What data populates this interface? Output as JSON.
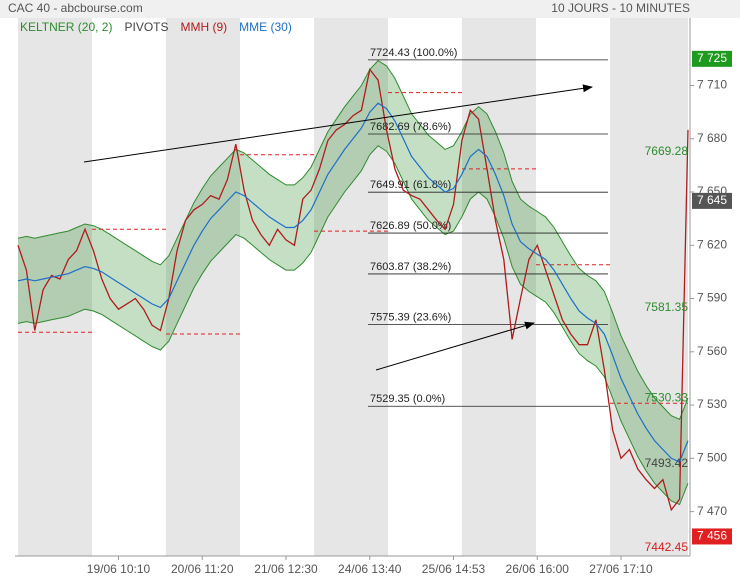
{
  "chart_data": {
    "type": "line",
    "title": "CAC 40 - abcbourse.com",
    "subtitle": "10 JOURS - 10 MINUTES",
    "categories": [
      null,
      null,
      null,
      null,
      null,
      null,
      null,
      null,
      null,
      null,
      null,
      null,
      "19/06 10:10",
      null,
      null,
      null,
      null,
      null,
      null,
      null,
      null,
      null,
      "20/06 11:20",
      null,
      null,
      null,
      null,
      null,
      null,
      null,
      null,
      null,
      "21/06 12:30",
      null,
      null,
      null,
      null,
      null,
      null,
      null,
      null,
      null,
      "24/06 13:40",
      null,
      null,
      null,
      null,
      null,
      null,
      null,
      null,
      null,
      "25/06 14:53",
      null,
      null,
      null,
      null,
      null,
      null,
      null,
      null,
      null,
      "26/06 16:00",
      null,
      null,
      null,
      null,
      null,
      null,
      null,
      null,
      null,
      "27/06 17:10",
      null,
      null,
      null,
      null,
      null,
      null,
      null,
      null
    ],
    "keltner": {
      "name": "KELTNER (20, 2)",
      "color": "#2e8b2e",
      "upper": [
        7624,
        7625,
        7624,
        7625,
        7626,
        7627,
        7628,
        7630,
        7632,
        7631,
        7629,
        7626,
        7623,
        7620,
        7617,
        7614,
        7611,
        7609,
        7614,
        7624,
        7634,
        7644,
        7652,
        7659,
        7664,
        7669,
        7674,
        7672,
        7668,
        7664,
        7660,
        7657,
        7654,
        7654,
        7658,
        7664,
        7674,
        7684,
        7691,
        7698,
        7704,
        7710,
        7719,
        7724,
        7721,
        7714,
        7704,
        7694,
        7688,
        7682,
        7678,
        7674,
        7676,
        7684,
        7694,
        7698,
        7694,
        7684,
        7672,
        7656,
        7646,
        7642,
        7639,
        7636,
        7630,
        7622,
        7614,
        7607,
        7603,
        7600,
        7594,
        7582,
        7569,
        7559,
        7549,
        7541,
        7534,
        7529,
        7524,
        7522,
        7534
      ],
      "lower": [
        7576,
        7577,
        7576,
        7577,
        7578,
        7579,
        7580,
        7582,
        7584,
        7583,
        7581,
        7578,
        7575,
        7572,
        7569,
        7566,
        7563,
        7561,
        7566,
        7576,
        7586,
        7596,
        7604,
        7611,
        7616,
        7621,
        7626,
        7624,
        7620,
        7616,
        7612,
        7609,
        7606,
        7606,
        7610,
        7616,
        7626,
        7636,
        7643,
        7650,
        7656,
        7662,
        7671,
        7676,
        7673,
        7666,
        7656,
        7646,
        7640,
        7634,
        7630,
        7626,
        7628,
        7636,
        7646,
        7650,
        7646,
        7636,
        7624,
        7608,
        7598,
        7594,
        7591,
        7588,
        7582,
        7574,
        7566,
        7559,
        7555,
        7552,
        7546,
        7534,
        7521,
        7511,
        7501,
        7493,
        7486,
        7481,
        7476,
        7474,
        7486
      ]
    },
    "pivots": {
      "name": "PIVOTS",
      "color": "#d22",
      "values": [
        7571,
        7629,
        7570,
        7671,
        7628,
        7706,
        7663,
        7609,
        7531
      ]
    },
    "mmh": {
      "name": "MMH (9)",
      "color": "#b01c1c",
      "values": [
        7620,
        7606,
        7572,
        7595,
        7603,
        7601,
        7612,
        7617,
        7629,
        7617,
        7601,
        7590,
        7584,
        7587,
        7590,
        7584,
        7575,
        7572,
        7590,
        7617,
        7634,
        7640,
        7643,
        7648,
        7646,
        7657,
        7677,
        7651,
        7634,
        7626,
        7620,
        7629,
        7623,
        7620,
        7646,
        7651,
        7663,
        7679,
        7685,
        7688,
        7693,
        7696,
        7719,
        7713,
        7685,
        7663,
        7651,
        7648,
        7646,
        7640,
        7634,
        7629,
        7643,
        7679,
        7696,
        7691,
        7663,
        7634,
        7612,
        7567,
        7590,
        7612,
        7620,
        7606,
        7592,
        7578,
        7570,
        7564,
        7564,
        7578,
        7550,
        7516,
        7500,
        7505,
        7494,
        7488,
        7483,
        7488,
        7471,
        7477,
        7685
      ]
    },
    "mme": {
      "name": "MME (30)",
      "color": "#1f6fc8",
      "values": [
        7600,
        7601,
        7600,
        7601,
        7602,
        7603,
        7604,
        7606,
        7608,
        7607,
        7605,
        7602,
        7599,
        7596,
        7593,
        7590,
        7587,
        7585,
        7590,
        7600,
        7610,
        7620,
        7628,
        7635,
        7640,
        7645,
        7650,
        7648,
        7644,
        7640,
        7636,
        7633,
        7630,
        7630,
        7634,
        7640,
        7650,
        7660,
        7667,
        7674,
        7680,
        7686,
        7695,
        7700,
        7697,
        7690,
        7680,
        7670,
        7664,
        7658,
        7654,
        7650,
        7652,
        7660,
        7670,
        7674,
        7670,
        7660,
        7648,
        7632,
        7622,
        7618,
        7615,
        7612,
        7606,
        7598,
        7590,
        7583,
        7579,
        7576,
        7570,
        7558,
        7545,
        7535,
        7525,
        7517,
        7510,
        7505,
        7500,
        7498,
        7510
      ]
    },
    "fibonacci": [
      {
        "value": 7724.43,
        "label": "7724.43  (100.0%)"
      },
      {
        "value": 7682.69,
        "label": "7682.69  (78.6%)"
      },
      {
        "value": 7649.91,
        "label": "7649.91  (61.8%)"
      },
      {
        "value": 7626.89,
        "label": "7626.89  (50.0%)"
      },
      {
        "value": 7603.87,
        "label": "7603.87  (38.2%)"
      },
      {
        "value": 7575.39,
        "label": "7575.39  (23.6%)"
      },
      {
        "value": 7529.35,
        "label": "7529.35  (0.0%)"
      }
    ],
    "price_labels": [
      {
        "value": 7669.28,
        "color": "#2e8b2e"
      },
      {
        "value": 7581.35,
        "color": "#2e8b2e"
      },
      {
        "value": 7530.33,
        "color": "#2e8b2e"
      },
      {
        "value": 7493.42,
        "color": "#444444"
      },
      {
        "value": 7442.45,
        "color": "#d22222"
      }
    ],
    "axis_boxes": [
      {
        "value": 7725,
        "label": "7 725",
        "color": "#1e9a1e"
      },
      {
        "value": 7645,
        "label": "7 645",
        "color": "#555555"
      },
      {
        "value": 7456,
        "label": "7 456",
        "color": "#e02020"
      }
    ],
    "ylim": [
      7445,
      7748
    ],
    "yticks": [
      {
        "value": 7710,
        "label": "7 710"
      },
      {
        "value": 7680,
        "label": "7 680"
      },
      {
        "value": 7650,
        "label": "7 650"
      },
      {
        "value": 7620,
        "label": "7 620"
      },
      {
        "value": 7590,
        "label": "7 590"
      },
      {
        "value": 7560,
        "label": "7 560"
      },
      {
        "value": 7530,
        "label": "7 530"
      },
      {
        "value": 7500,
        "label": "7 500"
      },
      {
        "value": 7470,
        "label": "7 470"
      }
    ]
  }
}
